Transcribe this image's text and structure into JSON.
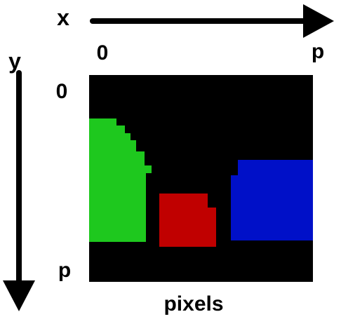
{
  "axes": {
    "x_label": "x",
    "y_label": "y",
    "x_start": "0",
    "x_end": "p",
    "y_start": "0",
    "y_end": "p"
  },
  "caption": "pixels",
  "colors": {
    "background": "#000000",
    "green_region": "#1ec81e",
    "red_region": "#c00000",
    "blue_region": "#0010c8",
    "arrows": "#000000"
  }
}
